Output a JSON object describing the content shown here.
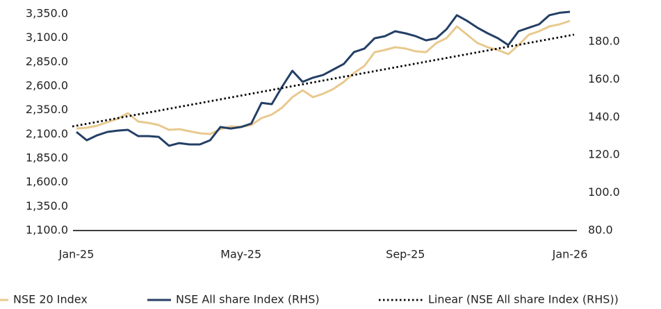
{
  "chart_data": {
    "type": "line",
    "x": [
      0,
      0.25,
      0.5,
      0.75,
      1,
      1.25,
      1.5,
      1.75,
      2,
      2.25,
      2.5,
      2.75,
      3,
      3.25,
      3.5,
      3.75,
      4,
      4.25,
      4.5,
      4.75,
      5,
      5.25,
      5.5,
      5.75,
      6,
      6.25,
      6.5,
      6.75,
      7,
      7.25,
      7.5,
      7.75,
      8,
      8.25,
      8.5,
      8.75,
      9,
      9.25,
      9.5,
      9.75,
      10,
      10.25,
      10.5,
      10.75,
      11,
      11.25,
      11.5,
      11.75,
      12
    ],
    "xlim": [
      0,
      12
    ],
    "xticks": [
      {
        "value": 0,
        "label": "Jan-25"
      },
      {
        "value": 4,
        "label": "May-25"
      },
      {
        "value": 8,
        "label": "Sep-25"
      },
      {
        "value": 12,
        "label": "Jan-26"
      }
    ],
    "ylim": [
      1100,
      3350
    ],
    "yticks": [
      {
        "value": 1100,
        "label": "1,100.0"
      },
      {
        "value": 1350,
        "label": "1,350.0"
      },
      {
        "value": 1600,
        "label": "1,600.0"
      },
      {
        "value": 1850,
        "label": "1,850.0"
      },
      {
        "value": 2100,
        "label": "2,100.0"
      },
      {
        "value": 2350,
        "label": "2,350.0"
      },
      {
        "value": 2600,
        "label": "2,600.0"
      },
      {
        "value": 2850,
        "label": "2,850.0"
      },
      {
        "value": 3100,
        "label": "3,100.0"
      },
      {
        "value": 3350,
        "label": "3,350.0"
      }
    ],
    "y2lim": [
      80,
      194.7
    ],
    "y2ticks": [
      {
        "value": 80,
        "label": "80.0"
      },
      {
        "value": 100,
        "label": "100.0"
      },
      {
        "value": 120,
        "label": "120.0"
      },
      {
        "value": 140,
        "label": "140.0"
      },
      {
        "value": 160,
        "label": "160.0"
      },
      {
        "value": 180,
        "label": "180.0"
      }
    ],
    "series": [
      {
        "name": "NSE 20 Index",
        "color": "#e8c98e",
        "values": [
          2160,
          2167,
          2189,
          2225,
          2261,
          2319,
          2232,
          2218,
          2196,
          2146,
          2153,
          2131,
          2110,
          2102,
          2153,
          2182,
          2175,
          2196,
          2268,
          2304,
          2376,
          2485,
          2557,
          2485,
          2521,
          2571,
          2643,
          2737,
          2809,
          2953,
          2975,
          3004,
          2990,
          2961,
          2953,
          3047,
          3098,
          3220,
          3134,
          3047,
          3004,
          2975,
          2932,
          3026,
          3134,
          3170,
          3220,
          3242,
          3278
        ]
      },
      {
        "name": "NSE All share Index (RHS)",
        "color": "#243f66",
        "axis": "y2",
        "values": [
          132.2,
          127.8,
          130.4,
          132.2,
          132.9,
          133.3,
          130.0,
          130.0,
          129.6,
          124.9,
          126.3,
          125.6,
          125.6,
          127.8,
          134.8,
          134.0,
          134.8,
          136.6,
          147.6,
          146.9,
          156.1,
          164.6,
          158.7,
          160.9,
          162.4,
          165.3,
          168.2,
          174.5,
          176.3,
          181.8,
          182.9,
          185.5,
          184.4,
          182.9,
          180.7,
          181.8,
          186.6,
          194.0,
          191.0,
          187.4,
          184.4,
          181.8,
          178.2,
          185.5,
          187.4,
          189.2,
          194.0,
          195.3,
          195.8
        ]
      },
      {
        "name": "Linear (NSE All share Index (RHS))",
        "color": "#000000",
        "axis": "y2",
        "dash": "dotted",
        "x": [
          -0.1,
          12.1
        ],
        "values": [
          135.1,
          183.7
        ]
      }
    ]
  }
}
